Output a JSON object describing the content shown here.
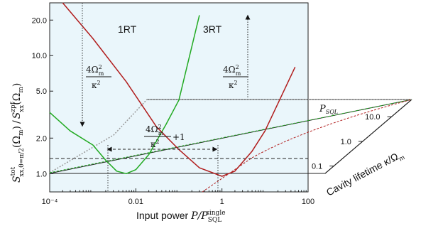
{
  "chart_data": {
    "type": "line",
    "title": "",
    "xlabel": {
      "prefix": "Input power",
      "math": "P/P",
      "sub": "SQL",
      "sup": "single"
    },
    "ylabel": {
      "math": "S",
      "sup1": "tot",
      "sub1": "xx,θ=π/2",
      "arg1": "(Ω",
      "arg1sub": "m",
      "arg1end": ")",
      "slash": "/",
      "sup2": "zpf",
      "sub2": "xx",
      "arg2": "(Ω",
      "arg2sub": "m",
      "arg2end": ")"
    },
    "zlabel": {
      "text": "Cavity lifetime κ/Ω",
      "sub": "m"
    },
    "x_scale": "log",
    "y_scale": "log",
    "z_scale": "log",
    "xlim": [
      0.0001,
      100
    ],
    "ylim": [
      0.7,
      28
    ],
    "zlim": [
      0.05,
      50
    ],
    "x_ticks": [
      "10⁻⁴",
      "0.01",
      "1",
      "100"
    ],
    "y_ticks": [
      "1.0",
      "2.0",
      "5.0",
      "10.0",
      "20.0"
    ],
    "z_ticks": [
      "0.1",
      "1.0",
      "10.0"
    ],
    "series": [
      {
        "name": "1RT",
        "color": "#22aa22",
        "x": [
          0.0001,
          0.0003,
          0.001,
          0.002,
          0.0036,
          0.006,
          0.01,
          0.02,
          0.05,
          0.1,
          0.3
        ],
        "y": [
          3.3,
          2.3,
          1.75,
          1.3,
          1.05,
          1.0,
          1.08,
          1.45,
          2.6,
          4.2,
          22
        ]
      },
      {
        "name": "3RT",
        "color": "#b11d1d",
        "x": [
          0.0002,
          0.001,
          0.006,
          0.03,
          0.1,
          0.3,
          1.0,
          2.0,
          5.0,
          10.0,
          50.0
        ],
        "y": [
          28,
          14,
          6.0,
          2.5,
          1.6,
          1.12,
          0.95,
          1.05,
          1.55,
          2.3,
          8.0
        ]
      }
    ],
    "annotations": {
      "label_1rt": "1RT",
      "label_3rt": "3RT",
      "psql": "P",
      "psql_sub": "SQL",
      "frac_num": "4Ω",
      "frac_num_sup": "2",
      "frac_num_sub": "m",
      "frac_den": "κ",
      "frac_den_sup": "2",
      "frac_plus": "+1"
    },
    "grid": false,
    "legend": "none"
  }
}
